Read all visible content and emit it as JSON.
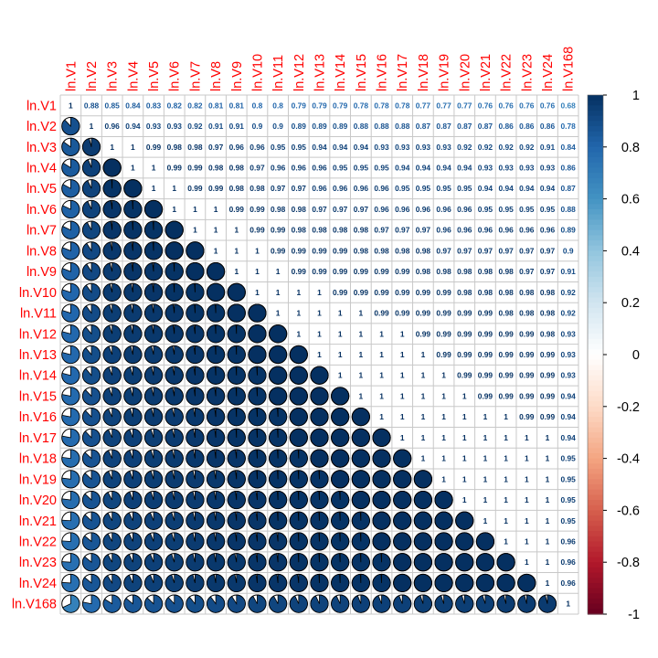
{
  "chart_data": {
    "type": "heatmap",
    "title": "",
    "method": "upper numbers, lower pie",
    "labels": [
      "ln.V1",
      "ln.V2",
      "ln.V3",
      "ln.V4",
      "ln.V5",
      "ln.V6",
      "ln.V7",
      "ln.V8",
      "ln.V9",
      "ln.V10",
      "ln.V11",
      "ln.V12",
      "ln.V13",
      "ln.V14",
      "ln.V15",
      "ln.V16",
      "ln.V17",
      "ln.V18",
      "ln.V19",
      "ln.V20",
      "ln.V21",
      "ln.V22",
      "ln.V23",
      "ln.V24",
      "ln.V168"
    ],
    "matrix": [
      [
        1,
        0.88,
        0.85,
        0.84,
        0.83,
        0.82,
        0.82,
        0.81,
        0.81,
        0.8,
        0.8,
        0.79,
        0.79,
        0.79,
        0.78,
        0.78,
        0.78,
        0.77,
        0.77,
        0.77,
        0.76,
        0.76,
        0.76,
        0.76,
        0.68
      ],
      [
        0.88,
        1,
        0.96,
        0.94,
        0.93,
        0.93,
        0.92,
        0.91,
        0.91,
        0.9,
        0.9,
        0.89,
        0.89,
        0.89,
        0.88,
        0.88,
        0.88,
        0.87,
        0.87,
        0.87,
        0.87,
        0.86,
        0.86,
        0.86,
        0.78
      ],
      [
        0.85,
        0.96,
        1,
        1,
        0.99,
        0.98,
        0.98,
        0.97,
        0.96,
        0.96,
        0.95,
        0.95,
        0.94,
        0.94,
        0.94,
        0.93,
        0.93,
        0.93,
        0.93,
        0.92,
        0.92,
        0.92,
        0.92,
        0.91,
        0.84
      ],
      [
        0.84,
        0.94,
        1,
        1,
        1,
        0.99,
        0.99,
        0.98,
        0.98,
        0.97,
        0.96,
        0.96,
        0.96,
        0.95,
        0.95,
        0.95,
        0.94,
        0.94,
        0.94,
        0.94,
        0.93,
        0.93,
        0.93,
        0.93,
        0.86
      ],
      [
        0.83,
        0.93,
        0.99,
        1,
        1,
        1,
        0.99,
        0.99,
        0.98,
        0.98,
        0.97,
        0.97,
        0.96,
        0.96,
        0.96,
        0.96,
        0.95,
        0.95,
        0.95,
        0.95,
        0.94,
        0.94,
        0.94,
        0.94,
        0.87
      ],
      [
        0.82,
        0.93,
        0.98,
        0.99,
        1,
        1,
        1,
        1,
        0.99,
        0.99,
        0.98,
        0.98,
        0.97,
        0.97,
        0.97,
        0.96,
        0.96,
        0.96,
        0.96,
        0.96,
        0.95,
        0.95,
        0.95,
        0.95,
        0.88
      ],
      [
        0.82,
        0.92,
        0.98,
        0.99,
        0.99,
        1,
        1,
        1,
        1,
        0.99,
        0.99,
        0.98,
        0.98,
        0.98,
        0.98,
        0.97,
        0.97,
        0.97,
        0.96,
        0.96,
        0.96,
        0.96,
        0.96,
        0.96,
        0.89
      ],
      [
        0.81,
        0.91,
        0.97,
        0.98,
        0.99,
        1,
        1,
        1,
        1,
        1,
        0.99,
        0.99,
        0.99,
        0.99,
        0.98,
        0.98,
        0.98,
        0.98,
        0.97,
        0.97,
        0.97,
        0.97,
        0.97,
        0.97,
        0.9
      ],
      [
        0.81,
        0.91,
        0.96,
        0.98,
        0.98,
        0.99,
        1,
        1,
        1,
        1,
        1,
        0.99,
        0.99,
        0.99,
        0.99,
        0.99,
        0.99,
        0.98,
        0.98,
        0.98,
        0.98,
        0.98,
        0.97,
        0.97,
        0.91
      ],
      [
        0.8,
        0.9,
        0.96,
        0.97,
        0.98,
        0.99,
        0.99,
        1,
        1,
        1,
        1,
        1,
        1,
        0.99,
        0.99,
        0.99,
        0.99,
        0.99,
        0.99,
        0.98,
        0.98,
        0.98,
        0.98,
        0.98,
        0.92
      ],
      [
        0.8,
        0.9,
        0.95,
        0.96,
        0.97,
        0.98,
        0.99,
        0.99,
        1,
        1,
        1,
        1,
        1,
        1,
        1,
        0.99,
        0.99,
        0.99,
        0.99,
        0.99,
        0.99,
        0.98,
        0.98,
        0.98,
        0.92
      ],
      [
        0.79,
        0.89,
        0.95,
        0.96,
        0.97,
        0.98,
        0.98,
        0.99,
        0.99,
        1,
        1,
        1,
        1,
        1,
        1,
        1,
        1,
        0.99,
        0.99,
        0.99,
        0.99,
        0.99,
        0.99,
        0.98,
        0.93
      ],
      [
        0.79,
        0.89,
        0.94,
        0.96,
        0.96,
        0.97,
        0.98,
        0.99,
        0.99,
        1,
        1,
        1,
        1,
        1,
        1,
        1,
        1,
        1,
        0.99,
        0.99,
        0.99,
        0.99,
        0.99,
        0.99,
        0.93
      ],
      [
        0.79,
        0.89,
        0.94,
        0.95,
        0.96,
        0.97,
        0.98,
        0.99,
        0.99,
        0.99,
        1,
        1,
        1,
        1,
        1,
        1,
        1,
        1,
        1,
        0.99,
        0.99,
        0.99,
        0.99,
        0.99,
        0.93
      ],
      [
        0.78,
        0.88,
        0.94,
        0.95,
        0.96,
        0.97,
        0.98,
        0.98,
        0.99,
        0.99,
        1,
        1,
        1,
        1,
        1,
        1,
        1,
        1,
        1,
        1,
        0.99,
        0.99,
        0.99,
        0.99,
        0.94
      ],
      [
        0.78,
        0.88,
        0.93,
        0.95,
        0.96,
        0.96,
        0.97,
        0.98,
        0.99,
        0.99,
        0.99,
        1,
        1,
        1,
        1,
        1,
        1,
        1,
        1,
        1,
        1,
        1,
        0.99,
        0.99,
        0.94
      ],
      [
        0.78,
        0.88,
        0.93,
        0.94,
        0.95,
        0.96,
        0.97,
        0.98,
        0.99,
        0.99,
        0.99,
        1,
        1,
        1,
        1,
        1,
        1,
        1,
        1,
        1,
        1,
        1,
        1,
        1,
        0.94
      ],
      [
        0.77,
        0.87,
        0.93,
        0.94,
        0.95,
        0.96,
        0.97,
        0.98,
        0.98,
        0.99,
        0.99,
        0.99,
        1,
        1,
        1,
        1,
        1,
        1,
        1,
        1,
        1,
        1,
        1,
        1,
        0.95
      ],
      [
        0.77,
        0.87,
        0.93,
        0.94,
        0.95,
        0.96,
        0.96,
        0.97,
        0.98,
        0.99,
        0.99,
        0.99,
        0.99,
        1,
        1,
        1,
        1,
        1,
        1,
        1,
        1,
        1,
        1,
        1,
        0.95
      ],
      [
        0.77,
        0.87,
        0.92,
        0.94,
        0.95,
        0.96,
        0.96,
        0.97,
        0.98,
        0.98,
        0.99,
        0.99,
        0.99,
        0.99,
        1,
        1,
        1,
        1,
        1,
        1,
        1,
        1,
        1,
        1,
        0.95
      ],
      [
        0.76,
        0.87,
        0.92,
        0.93,
        0.94,
        0.95,
        0.96,
        0.97,
        0.98,
        0.98,
        0.99,
        0.99,
        0.99,
        0.99,
        0.99,
        1,
        1,
        1,
        1,
        1,
        1,
        1,
        1,
        1,
        0.95
      ],
      [
        0.76,
        0.86,
        0.92,
        0.93,
        0.94,
        0.95,
        0.96,
        0.97,
        0.98,
        0.98,
        0.98,
        0.99,
        0.99,
        0.99,
        0.99,
        1,
        1,
        1,
        1,
        1,
        1,
        1,
        1,
        1,
        0.96
      ],
      [
        0.76,
        0.86,
        0.92,
        0.93,
        0.94,
        0.95,
        0.96,
        0.97,
        0.97,
        0.98,
        0.98,
        0.99,
        0.99,
        0.99,
        0.99,
        0.99,
        1,
        1,
        1,
        1,
        1,
        1,
        1,
        1,
        0.96
      ],
      [
        0.76,
        0.86,
        0.91,
        0.93,
        0.94,
        0.95,
        0.96,
        0.97,
        0.97,
        0.98,
        0.98,
        0.98,
        0.99,
        0.99,
        0.99,
        0.99,
        1,
        1,
        1,
        1,
        1,
        1,
        1,
        1,
        0.96
      ],
      [
        0.68,
        0.78,
        0.84,
        0.86,
        0.87,
        0.88,
        0.89,
        0.9,
        0.91,
        0.92,
        0.92,
        0.93,
        0.93,
        0.93,
        0.94,
        0.94,
        0.94,
        0.95,
        0.95,
        0.95,
        0.95,
        0.96,
        0.96,
        0.96,
        1
      ]
    ],
    "colorbar": {
      "range": [
        -1,
        1
      ],
      "ticks": [
        "1",
        "0.8",
        "0.6",
        "0.4",
        "0.2",
        "0",
        "-0.2",
        "-0.4",
        "-0.6",
        "-0.8",
        "-1"
      ]
    },
    "colors": {
      "label": "#ff0000",
      "grid": "#c8c8c8",
      "pie_outline": "#000000",
      "scale_negative": "#67001f",
      "scale_mid": "#ffffff",
      "scale_positive": "#053061"
    }
  }
}
